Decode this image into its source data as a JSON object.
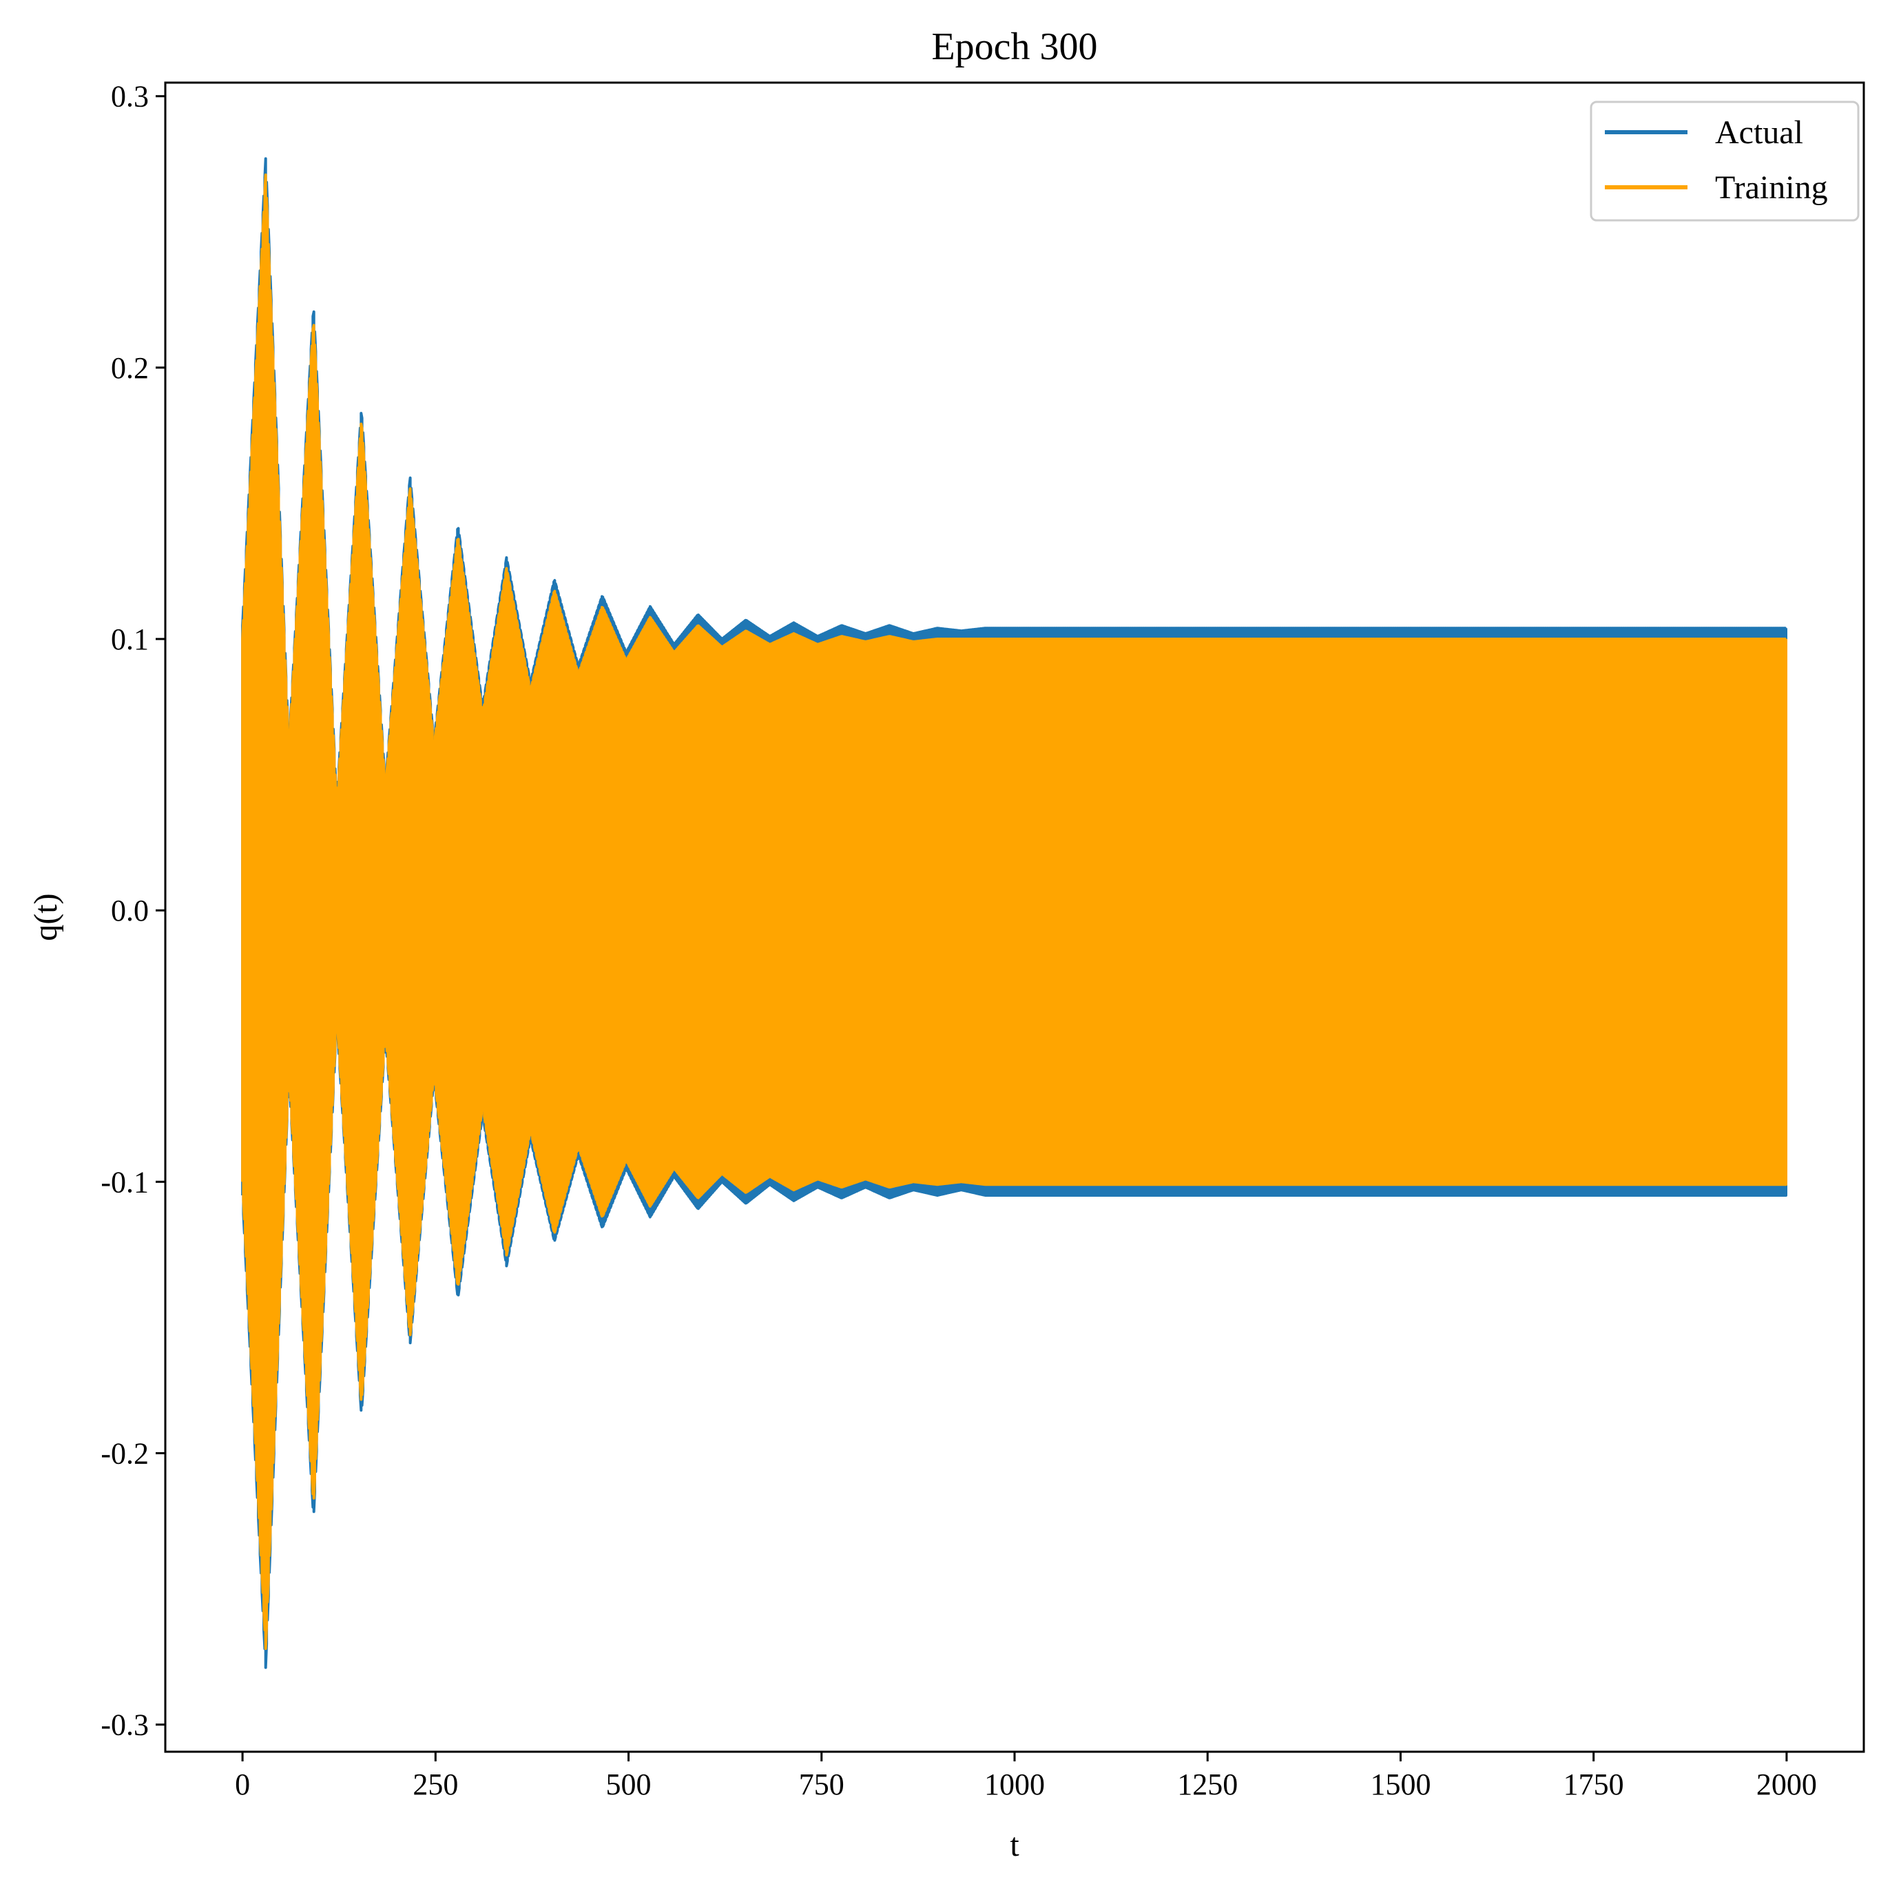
{
  "chart_data": {
    "type": "line",
    "title": "Epoch 300",
    "xlabel": "t",
    "ylabel": "q(t)",
    "xlim": [
      -100,
      2100
    ],
    "ylim": [
      -0.31,
      0.305
    ],
    "xticks": [
      0,
      250,
      500,
      750,
      1000,
      1250,
      1500,
      1750,
      2000
    ],
    "xtick_labels": [
      "0",
      "250",
      "500",
      "750",
      "1000",
      "1250",
      "1500",
      "1750",
      "2000"
    ],
    "yticks": [
      -0.3,
      -0.2,
      -0.1,
      0.0,
      0.1,
      0.2,
      0.3
    ],
    "ytick_labels": [
      "-0.3",
      "-0.2",
      "-0.1",
      "0.0",
      "0.1",
      "0.2",
      "0.3"
    ],
    "grid": false,
    "legend_position": "top-right",
    "series": [
      {
        "name": "Actual",
        "color": "#1f77b4",
        "envelope": {
          "t": [
            0,
            30,
            60,
            92,
            122,
            154,
            185,
            217,
            248,
            279,
            311,
            342,
            373,
            404,
            435,
            466,
            497,
            528,
            559,
            590,
            621,
            652,
            683,
            714,
            745,
            776,
            807,
            838,
            869,
            900,
            931,
            962,
            1000,
            1050,
            1100,
            1200,
            1300,
            1400,
            1500,
            1600,
            1700,
            1800,
            1900,
            2000
          ],
          "upper": [
            0.105,
            0.277,
            0.06,
            0.223,
            0.04,
            0.185,
            0.046,
            0.16,
            0.062,
            0.142,
            0.075,
            0.13,
            0.084,
            0.122,
            0.09,
            0.116,
            0.095,
            0.112,
            0.098,
            0.109,
            0.1,
            0.107,
            0.101,
            0.106,
            0.101,
            0.105,
            0.102,
            0.105,
            0.102,
            0.104,
            0.103,
            0.104,
            0.104,
            0.104,
            0.104,
            0.104,
            0.104,
            0.104,
            0.104,
            0.104,
            0.104,
            0.104,
            0.104,
            0.104
          ],
          "lower": [
            -0.105,
            -0.279,
            -0.06,
            -0.224,
            -0.04,
            -0.186,
            -0.046,
            -0.16,
            -0.062,
            -0.143,
            -0.075,
            -0.131,
            -0.084,
            -0.122,
            -0.09,
            -0.117,
            -0.095,
            -0.113,
            -0.098,
            -0.11,
            -0.1,
            -0.108,
            -0.101,
            -0.107,
            -0.102,
            -0.106,
            -0.102,
            -0.106,
            -0.103,
            -0.105,
            -0.103,
            -0.105,
            -0.105,
            -0.105,
            -0.105,
            -0.105,
            -0.105,
            -0.105,
            -0.105,
            -0.105,
            -0.105,
            -0.105,
            -0.105,
            -0.105
          ]
        }
      },
      {
        "name": "Training",
        "color": "#ffa500",
        "envelope": {
          "t": [
            0,
            30,
            60,
            92,
            122,
            154,
            185,
            217,
            248,
            279,
            311,
            342,
            373,
            404,
            435,
            466,
            497,
            528,
            559,
            590,
            621,
            652,
            683,
            714,
            745,
            776,
            807,
            838,
            869,
            900,
            931,
            962,
            1000,
            1050,
            1100,
            1200,
            1300,
            1400,
            1500,
            1600,
            1700,
            1800,
            1900,
            2000
          ],
          "upper": [
            0.1,
            0.271,
            0.058,
            0.218,
            0.038,
            0.181,
            0.044,
            0.156,
            0.06,
            0.138,
            0.072,
            0.126,
            0.081,
            0.118,
            0.087,
            0.112,
            0.092,
            0.108,
            0.095,
            0.105,
            0.097,
            0.103,
            0.098,
            0.102,
            0.098,
            0.101,
            0.099,
            0.101,
            0.099,
            0.1,
            0.1,
            0.1,
            0.1,
            0.1,
            0.1,
            0.1,
            0.1,
            0.1,
            0.1,
            0.1,
            0.1,
            0.1,
            0.1,
            0.1
          ],
          "lower": [
            -0.1,
            -0.272,
            -0.058,
            -0.219,
            -0.038,
            -0.182,
            -0.044,
            -0.157,
            -0.06,
            -0.139,
            -0.072,
            -0.127,
            -0.081,
            -0.119,
            -0.087,
            -0.113,
            -0.092,
            -0.109,
            -0.095,
            -0.106,
            -0.097,
            -0.104,
            -0.098,
            -0.103,
            -0.099,
            -0.102,
            -0.099,
            -0.102,
            -0.1,
            -0.101,
            -0.1,
            -0.101,
            -0.101,
            -0.101,
            -0.101,
            -0.101,
            -0.101,
            -0.101,
            -0.101,
            -0.101,
            -0.101,
            -0.101,
            -0.101,
            -0.101
          ]
        }
      }
    ]
  }
}
